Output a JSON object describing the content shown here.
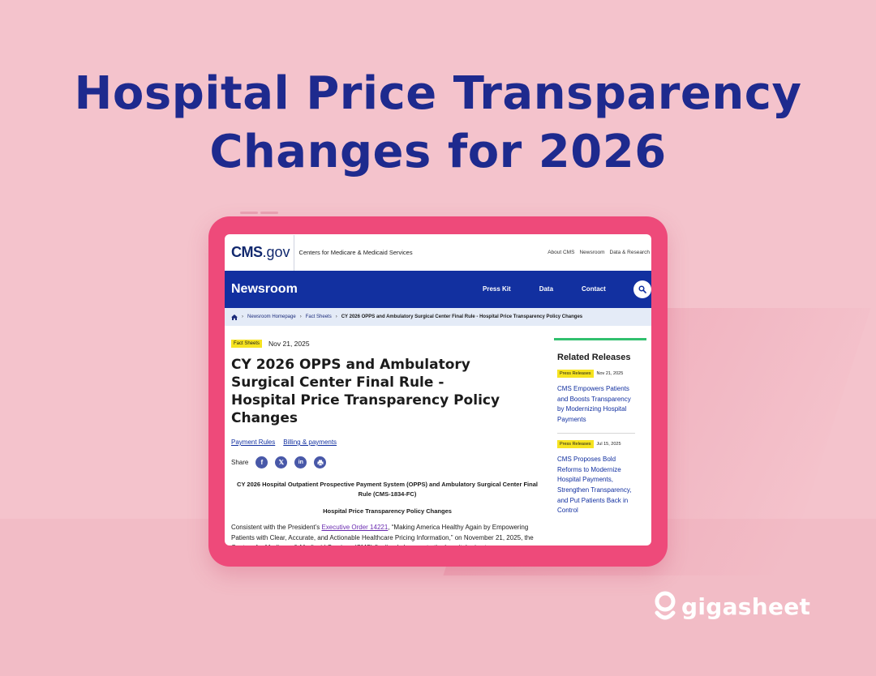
{
  "headline": {
    "line1": "Hospital Price Transparency",
    "line2": "Changes for 2026"
  },
  "site": {
    "logo_bold": "CMS",
    "logo_rest": ".gov",
    "org_name": "Centers for Medicare & Medicaid Services",
    "top_links": [
      "About CMS",
      "Newsroom",
      "Data & Research"
    ]
  },
  "nav": {
    "title": "Newsroom",
    "links": [
      "Press Kit",
      "Data",
      "Contact"
    ],
    "search_icon": "search-icon"
  },
  "breadcrumb": {
    "home_icon": "home-icon",
    "items": [
      "Newsroom Homepage",
      "Fact Sheets",
      "CY 2026 OPPS and Ambulatory Surgical Center Final Rule - Hospital Price Transparency Policy Changes"
    ]
  },
  "article": {
    "tag": "Fact Sheets",
    "date": "Nov 21, 2025",
    "title": "CY 2026 OPPS and Ambulatory Surgical Center Final Rule - Hospital Price Transparency Policy Changes",
    "topics": [
      "Payment Rules",
      "Billing & payments"
    ],
    "share_label": "Share",
    "share_icons": [
      "facebook-icon",
      "x-icon",
      "linkedin-icon",
      "print-icon"
    ],
    "subhead1": "CY 2026 Hospital Outpatient Prospective Payment System (OPPS) and Ambulatory Surgical Center Final Rule (CMS-1834-FC)",
    "subhead2": "Hospital Price Transparency Policy Changes",
    "body_pre": "Consistent with the President’s ",
    "body_link": "Executive Order 14221",
    "body_post": ", “Making America Healthy Again by Empowering Patients with Clear, Accurate, and Actionable Healthcare Pricing Information,” on November 21, 2025, the Centers for Medicare & Medicaid Services (CMS) finalized changes to the hospital price transparency regulations to ensure that hospitals provide meaningful, accurate"
  },
  "sidebar": {
    "heading": "Related Releases",
    "releases": [
      {
        "tag": "Press Releases",
        "date": "Nov 21, 2025",
        "title": "CMS Empowers Patients and Boosts Transparency by Modernizing Hospital Payments"
      },
      {
        "tag": "Press Releases",
        "date": "Jul 15, 2025",
        "title": "CMS Proposes Bold Reforms to Modernize Hospital Payments, Strengthen Transparency, and Put Patients Back in Control"
      }
    ]
  },
  "brand": {
    "name": "gigasheet",
    "logo_icon": "gigasheet-logo-icon"
  },
  "colors": {
    "background": "#f4c3cc",
    "headline": "#1e2a8e",
    "tablet_frame": "#ee4a7a",
    "nav_blue": "#1230a0",
    "tag_yellow": "#f6e320",
    "sidebar_accent": "#31c06e"
  }
}
